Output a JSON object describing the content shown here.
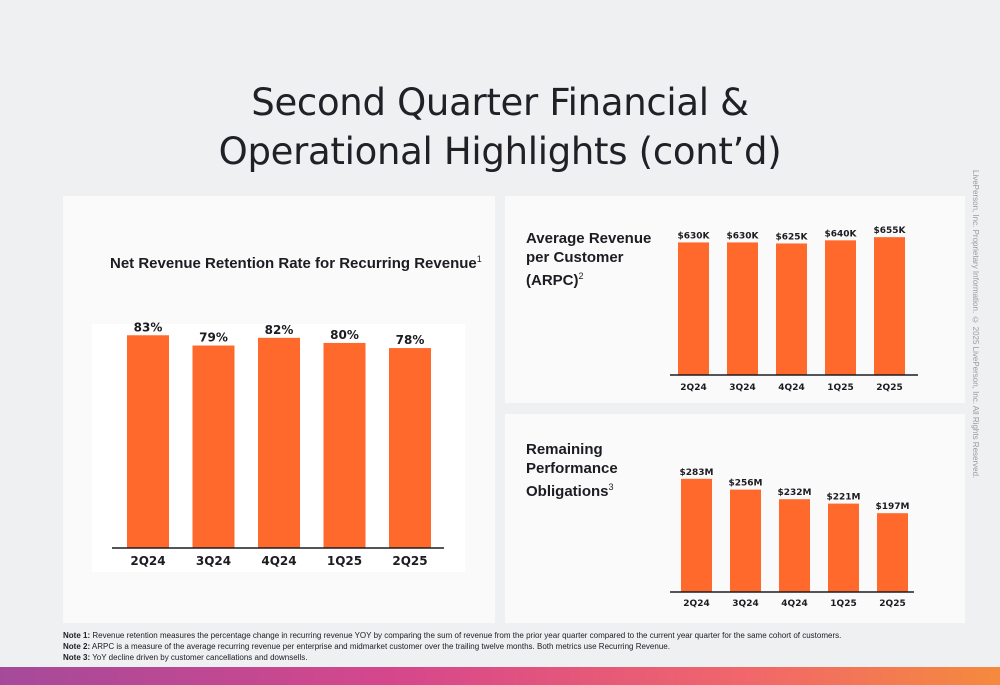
{
  "title_lines": [
    "Second Quarter Financial &",
    "Operational Highlights (cont’d)"
  ],
  "colors": {
    "bar": "#ff6a2c",
    "background": "#eff0f1",
    "panel": "#fafafa"
  },
  "chart_data": [
    {
      "type": "bar",
      "title": "Net Revenue Retention Rate for Recurring Revenue",
      "title_note": "1",
      "categories": [
        "2Q24",
        "3Q24",
        "4Q24",
        "1Q25",
        "2Q25"
      ],
      "values": [
        83,
        79,
        82,
        80,
        78
      ],
      "value_labels": [
        "83%",
        "79%",
        "82%",
        "80%",
        "78%"
      ],
      "unit": "%",
      "ylim": [
        0,
        87
      ],
      "grid": false
    },
    {
      "type": "bar",
      "title_lines": [
        "Average Revenue",
        "per Customer",
        "(ARPC)"
      ],
      "title_note": "2",
      "categories": [
        "2Q24",
        "3Q24",
        "4Q24",
        "1Q25",
        "2Q25"
      ],
      "values": [
        630,
        630,
        625,
        640,
        655
      ],
      "value_labels": [
        "$630K",
        "$630K",
        "$625K",
        "$640K",
        "$655K"
      ],
      "unit": "$K",
      "ylim": [
        0,
        670
      ],
      "grid": false
    },
    {
      "type": "bar",
      "title_lines": [
        "Remaining",
        "Performance",
        "Obligations"
      ],
      "title_note": "3",
      "categories": [
        "2Q24",
        "3Q24",
        "4Q24",
        "1Q25",
        "2Q25"
      ],
      "values": [
        283,
        256,
        232,
        221,
        197
      ],
      "value_labels": [
        "$283M",
        "$256M",
        "$232M",
        "$221M",
        "$197M"
      ],
      "unit": "$M",
      "ylim": [
        0,
        290
      ],
      "grid": false
    }
  ],
  "notes": [
    {
      "label": "Note 1:",
      "text": " Revenue retention measures the percentage change in recurring revenue YOY by comparing the sum of revenue from the prior year quarter compared to the current year quarter for the same cohort of customers."
    },
    {
      "label": "Note 2:",
      "text": " ARPC is a measure of the average recurring revenue per enterprise and midmarket customer over the trailing twelve months.  Both metrics use Recurring Revenue."
    },
    {
      "label": "Note 3:",
      "text": " YoY decline driven by customer cancellations and downsells."
    }
  ],
  "copyright": "LivePerson, Inc. Proprietary Information. © 2025 LivePerson, Inc. All Rights Reserved."
}
